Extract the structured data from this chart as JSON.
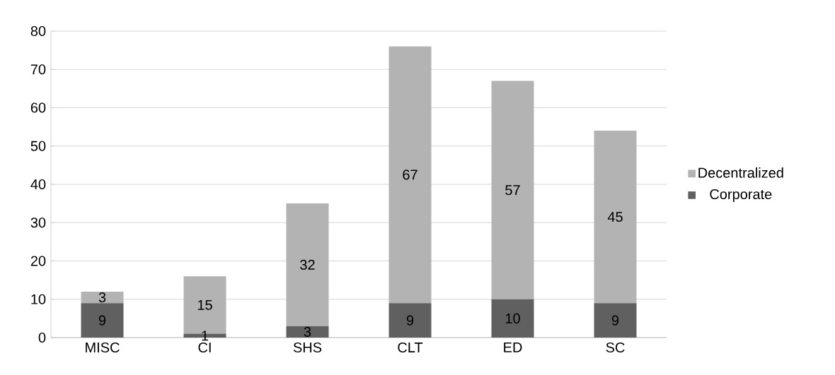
{
  "chart_data": {
    "type": "bar",
    "stacked": true,
    "categories": [
      "MISC",
      "CI",
      "SHS",
      "CLT",
      "ED",
      "SC"
    ],
    "series": [
      {
        "name": "Corporate",
        "color": "#606060",
        "values": [
          9,
          1,
          3,
          9,
          10,
          9
        ]
      },
      {
        "name": "Decentralized",
        "color": "#b3b3b3",
        "values": [
          3,
          15,
          32,
          67,
          57,
          45
        ]
      }
    ],
    "ylim": [
      0,
      80
    ],
    "yticks": [
      0,
      10,
      20,
      30,
      40,
      50,
      60,
      70,
      80
    ],
    "grid": "y",
    "legend": "right",
    "data_labels": true
  }
}
